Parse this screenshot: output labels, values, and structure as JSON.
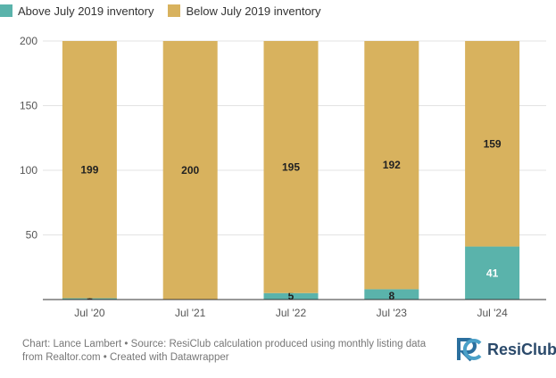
{
  "legend": [
    {
      "label": "Above July 2019 inventory",
      "color": "#5ab3ab"
    },
    {
      "label": "Below July 2019 inventory",
      "color": "#d8b25e"
    }
  ],
  "chart_data": {
    "type": "bar",
    "stacked": true,
    "categories": [
      "Jul '20",
      "Jul '21",
      "Jul '22",
      "Jul '23",
      "Jul '24"
    ],
    "series": [
      {
        "name": "Above July 2019 inventory",
        "values": [
          1,
          0,
          5,
          8,
          41
        ],
        "color": "#5ab3ab"
      },
      {
        "name": "Below July 2019 inventory",
        "values": [
          199,
          200,
          195,
          192,
          159
        ],
        "color": "#d8b25e"
      }
    ],
    "y_ticks": [
      50,
      100,
      150,
      200
    ],
    "ylim": [
      0,
      200
    ],
    "grid": true,
    "legend_position": "top-left"
  },
  "footer": {
    "text": "Chart: Lance Lambert • Source: ResiClub calculation produced using monthly listing data from Realtor.com • Created with Datawrapper"
  },
  "brand": {
    "name": "ResiClub",
    "logo_icon": "resiclub-logo-icon"
  }
}
